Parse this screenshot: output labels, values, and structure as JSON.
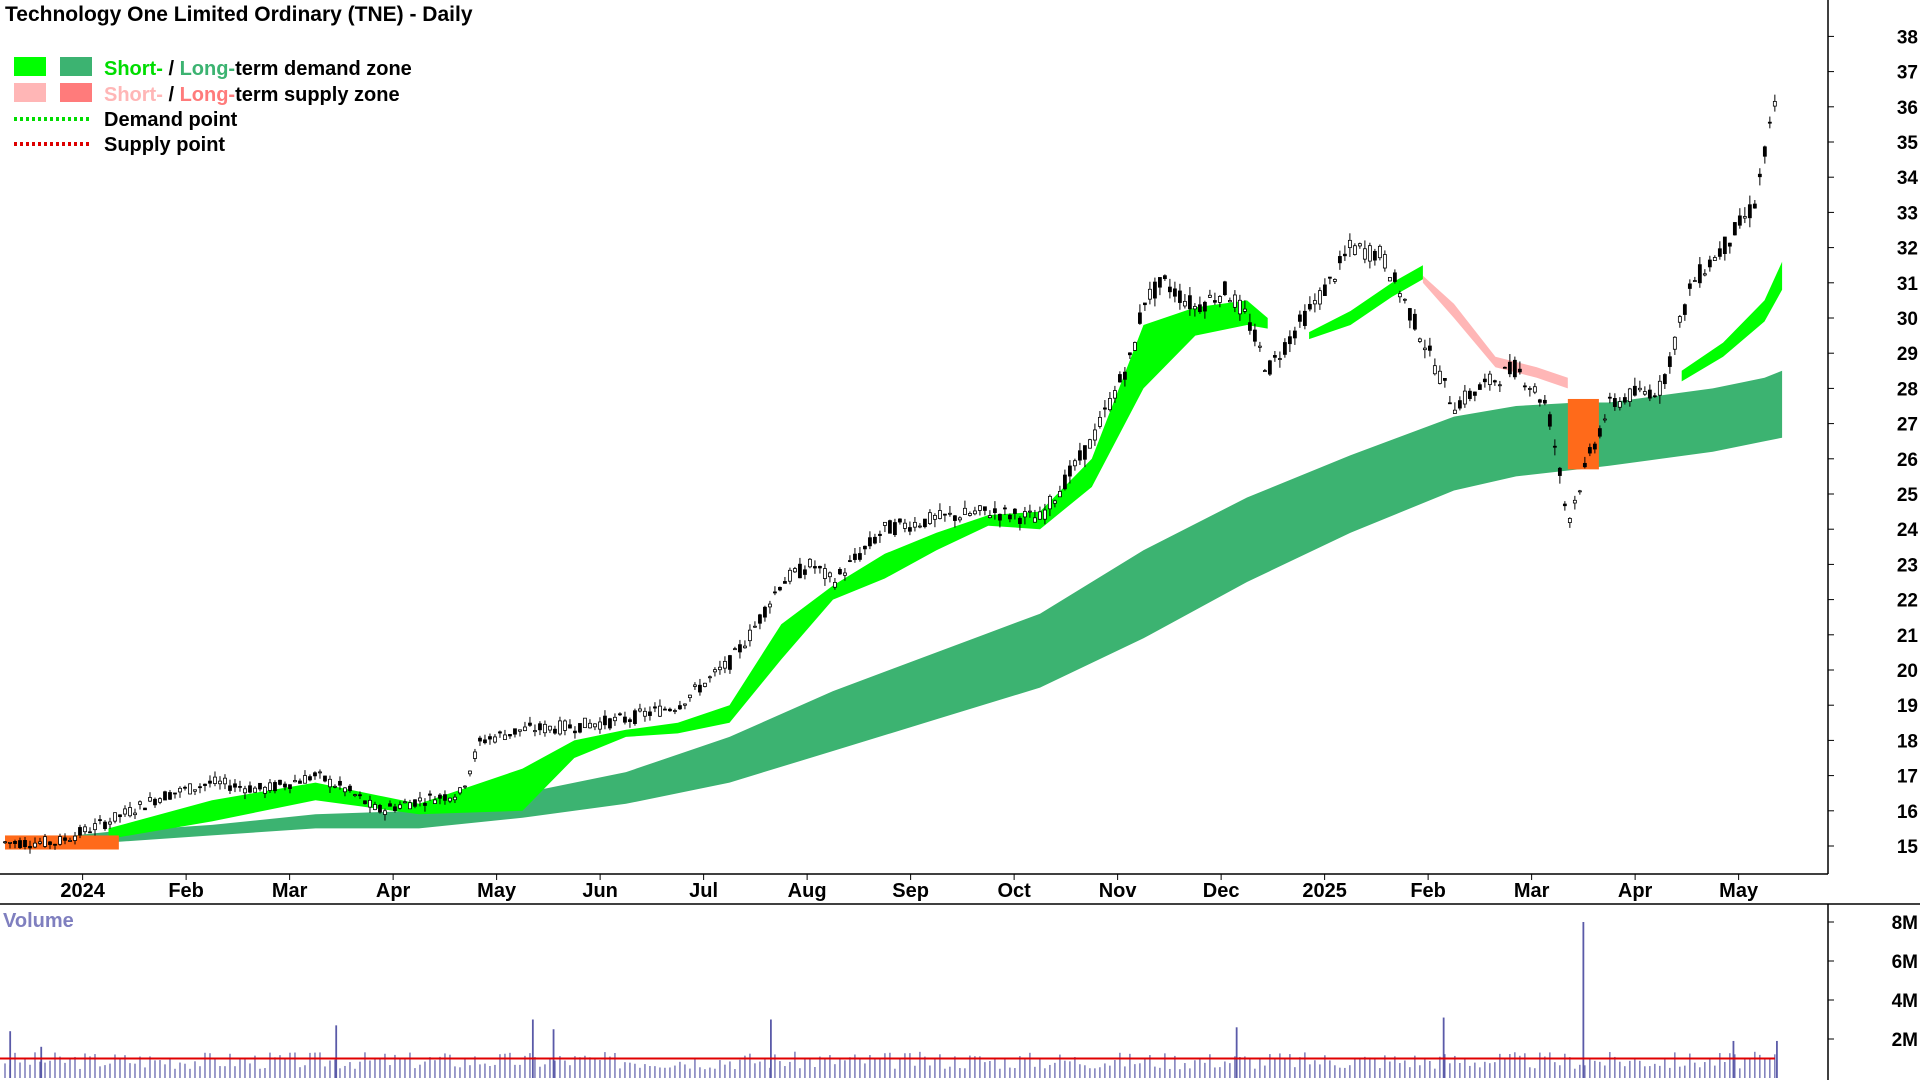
{
  "title": "Technology One Limited Ordinary (TNE) - Daily",
  "legend": {
    "demand_zone": {
      "short": "Short-",
      "sep": " / ",
      "long": "Long-",
      "rest": "term demand zone"
    },
    "supply_zone": {
      "short": "Short-",
      "sep": " / ",
      "long": "Long-",
      "rest": "term supply zone"
    },
    "demand_point": "Demand point",
    "supply_point": "Supply point"
  },
  "volume_label": "Volume",
  "colors": {
    "short_demand": "#00ff00",
    "long_demand": "#3cb371",
    "short_supply": "#ffb6b6",
    "long_supply": "#ff7b7b",
    "demand_point": "#00dd00",
    "supply_point": "#dd0000",
    "orange_zone": "#ff6a1a",
    "volume_bar": "#5a5aa8",
    "volume_avg": "#e00000",
    "axis": "#000000"
  },
  "chart_data": [
    {
      "type": "candlestick",
      "title": "Technology One Limited Ordinary (TNE) - Daily",
      "x_axis_labels": [
        "2024",
        "Feb",
        "Mar",
        "Apr",
        "May",
        "Jun",
        "Jul",
        "Aug",
        "Sep",
        "Oct",
        "Nov",
        "Dec",
        "2025",
        "Feb",
        "Mar",
        "Apr",
        "May"
      ],
      "y_tick_labels": [
        "15",
        "16",
        "17",
        "18",
        "19",
        "20",
        "21",
        "22",
        "23",
        "24",
        "25",
        "26",
        "27",
        "28",
        "29",
        "30",
        "31",
        "32",
        "33",
        "34",
        "35",
        "36",
        "37",
        "38"
      ],
      "ylim": [
        14,
        38.4
      ],
      "grid": false,
      "legend_position": "top-left",
      "price_path_months": [
        0,
        0.5,
        1,
        1.5,
        2,
        2.5,
        3,
        3.3,
        3.6,
        4,
        4.4,
        4.6,
        5,
        5.5,
        6,
        6.5,
        7,
        7.2,
        7.5,
        7.8,
        8,
        8.5,
        9,
        9.5,
        10,
        10.5,
        10.9,
        11,
        11.2,
        11.5,
        11.8,
        12,
        12.2,
        12.5,
        12.8,
        13,
        13.3,
        13.6,
        14,
        14.3,
        14.6,
        14.9,
        15,
        15.1,
        15.3,
        15.5,
        15.7,
        16,
        16.3,
        16.6,
        16.9,
        17.1
      ],
      "price_path_values": [
        15.1,
        15.1,
        15.7,
        16.4,
        16.8,
        16.6,
        17.0,
        16.6,
        16.0,
        16.3,
        16.5,
        18.0,
        18.3,
        18.4,
        18.6,
        19.0,
        20.2,
        21.0,
        22.5,
        23.0,
        22.5,
        24.0,
        24.3,
        24.5,
        24.3,
        26.5,
        29.0,
        30.5,
        31.0,
        30.3,
        30.8,
        30.0,
        28.5,
        29.8,
        31.0,
        32.0,
        31.8,
        30.0,
        27.5,
        28.1,
        28.6,
        27.5,
        26.0,
        24.2,
        26.0,
        27.5,
        27.8,
        28.0,
        31.0,
        32.0,
        33.2,
        36.0
      ],
      "short_demand_zone": {
        "months": [
          1,
          2,
          3,
          4,
          5,
          5.5,
          6,
          6.5,
          7,
          7.5,
          8,
          8.5,
          9,
          9.5,
          10,
          10.5,
          11,
          11.5,
          12,
          12.2
        ],
        "upper": [
          15.5,
          16.3,
          16.8,
          16.2,
          17.2,
          18.0,
          18.3,
          18.5,
          19.0,
          21.3,
          22.4,
          23.3,
          23.9,
          24.4,
          24.5,
          26.0,
          29.8,
          30.3,
          30.5,
          30.0
        ],
        "lower": [
          15.2,
          15.7,
          16.3,
          15.9,
          16.0,
          17.5,
          18.1,
          18.2,
          18.5,
          20.3,
          22.0,
          22.6,
          23.4,
          24.1,
          24.0,
          25.2,
          28.0,
          29.5,
          29.8,
          29.7
        ]
      },
      "short_demand_zone_2": {
        "months": [
          12.6,
          13,
          13.4,
          13.7
        ],
        "upper": [
          29.6,
          30.2,
          31.0,
          31.5
        ],
        "lower": [
          29.4,
          29.8,
          30.6,
          31.1
        ]
      },
      "short_demand_zone_3": {
        "months": [
          16.2,
          16.6,
          17.0,
          17.17
        ],
        "upper": [
          28.5,
          29.3,
          30.5,
          31.6
        ],
        "lower": [
          28.2,
          28.9,
          29.9,
          30.8
        ]
      },
      "long_demand_zone": {
        "months": [
          0,
          1,
          2,
          3,
          4,
          5,
          6,
          7,
          8,
          9,
          10,
          11,
          12,
          13,
          14,
          14.6,
          15.2,
          15.5,
          16,
          16.5,
          17,
          17.17
        ],
        "upper": [
          15.1,
          15.4,
          15.6,
          15.9,
          16.0,
          16.5,
          17.1,
          18.1,
          19.4,
          20.5,
          21.6,
          23.4,
          24.9,
          26.1,
          27.2,
          27.5,
          27.6,
          27.6,
          27.8,
          28.0,
          28.3,
          28.5
        ],
        "lower": [
          15.0,
          15.1,
          15.3,
          15.5,
          15.5,
          15.8,
          16.2,
          16.8,
          17.7,
          18.6,
          19.5,
          20.9,
          22.5,
          23.9,
          25.1,
          25.5,
          25.7,
          25.8,
          26.0,
          26.2,
          26.5,
          26.6
        ]
      },
      "short_supply_zone": {
        "months": [
          13.7,
          14.0,
          14.4,
          14.8,
          15.1
        ],
        "upper": [
          31.2,
          30.4,
          28.9,
          28.6,
          28.3
        ],
        "lower": [
          31.0,
          30.0,
          28.6,
          28.3,
          28.0
        ]
      },
      "orange_zones": [
        {
          "months": [
            0.0,
            1.1
          ],
          "upper": 15.3,
          "lower": 14.9
        },
        {
          "months": [
            15.1,
            15.4
          ],
          "upper": 27.7,
          "lower": 25.7
        }
      ]
    },
    {
      "type": "bar",
      "title": "Volume",
      "y_tick_labels": [
        "2M",
        "4M",
        "6M",
        "8M"
      ],
      "ylim": [
        0,
        8400000
      ],
      "average_volume": 1000000,
      "spikes": [
        {
          "month": 0.05,
          "value": 2400000
        },
        {
          "month": 0.35,
          "value": 1600000
        },
        {
          "month": 3.2,
          "value": 2700000
        },
        {
          "month": 5.1,
          "value": 3000000
        },
        {
          "month": 5.3,
          "value": 2500000
        },
        {
          "month": 7.4,
          "value": 3000000
        },
        {
          "month": 11.9,
          "value": 2600000
        },
        {
          "month": 13.9,
          "value": 3100000
        },
        {
          "month": 15.25,
          "value": 8000000
        },
        {
          "month": 16.7,
          "value": 1900000
        },
        {
          "month": 17.12,
          "value": 1900000
        }
      ]
    }
  ]
}
